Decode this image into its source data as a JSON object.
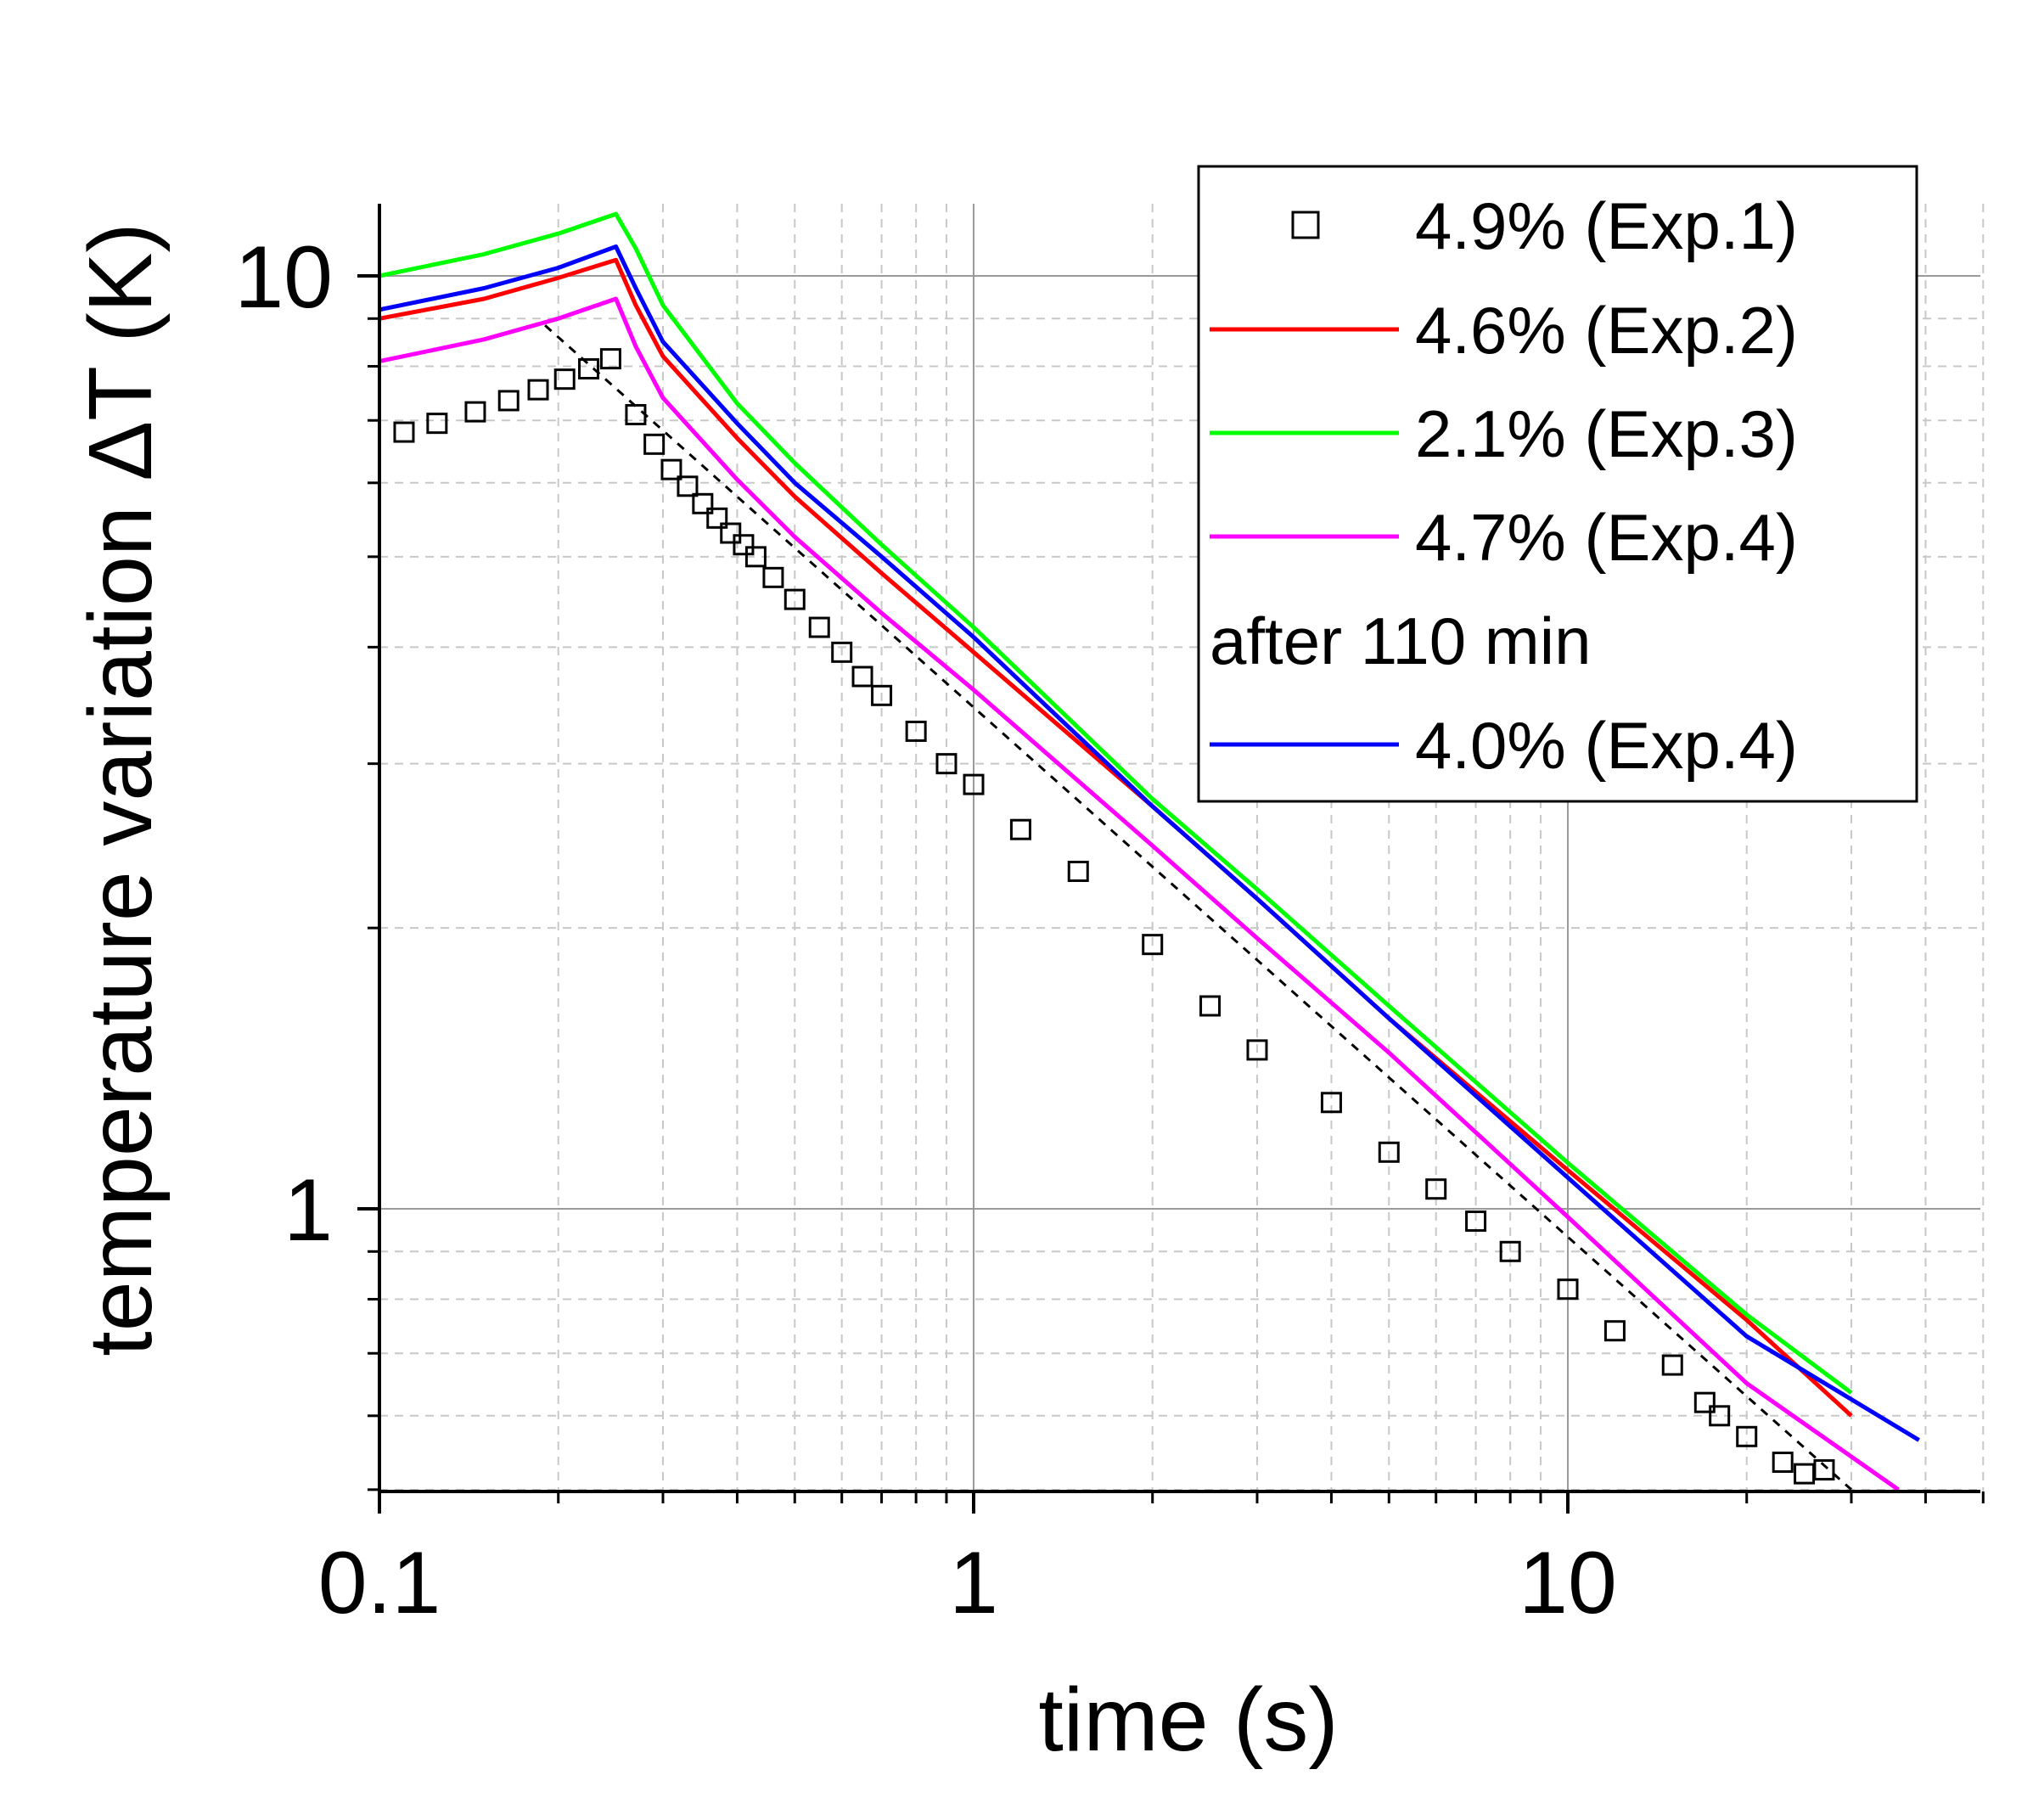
{
  "chart_data": {
    "type": "line",
    "title": "",
    "xlabel": "time (s)",
    "ylabel": "temperature variation ΔT (K)",
    "xscale": "log",
    "yscale": "log",
    "xlim": [
      0.1,
      50
    ],
    "ylim": [
      0.5,
      12
    ],
    "xticks": [
      {
        "value": 0.1,
        "label": "0.1"
      },
      {
        "value": 1,
        "label": "1"
      },
      {
        "value": 10,
        "label": "10"
      }
    ],
    "yticks": [
      {
        "value": 1,
        "label": "1"
      },
      {
        "value": 10,
        "label": "10"
      }
    ],
    "grid": true,
    "legend_position": "top-right",
    "legend_note": "after 110 min",
    "series": [
      {
        "name": "4.9% (Exp.1)",
        "kind": "markers",
        "marker": "open-square",
        "color": "#000000",
        "x": [
          0.11,
          0.125,
          0.145,
          0.165,
          0.185,
          0.205,
          0.225,
          0.245,
          0.27,
          0.29,
          0.31,
          0.33,
          0.35,
          0.37,
          0.39,
          0.41,
          0.43,
          0.46,
          0.5,
          0.55,
          0.6,
          0.65,
          0.7,
          0.8,
          0.9,
          1.0,
          1.2,
          1.5,
          2.0,
          2.5,
          3.0,
          4.0,
          5.0,
          6.0,
          7.0,
          8.0,
          10.0,
          12.0,
          15.0,
          17.0,
          18.0,
          20.0,
          23.0,
          25.0,
          27.0
        ],
        "y": [
          6.8,
          6.95,
          7.15,
          7.35,
          7.55,
          7.75,
          7.95,
          8.15,
          7.1,
          6.6,
          6.2,
          5.95,
          5.7,
          5.5,
          5.3,
          5.15,
          5.0,
          4.75,
          4.5,
          4.2,
          3.95,
          3.72,
          3.55,
          3.25,
          3.0,
          2.85,
          2.55,
          2.3,
          1.92,
          1.65,
          1.48,
          1.3,
          1.15,
          1.05,
          0.97,
          0.9,
          0.82,
          0.74,
          0.68,
          0.62,
          0.6,
          0.57,
          0.535,
          0.52,
          0.525
        ]
      },
      {
        "name": "4.6% (Exp.2)",
        "kind": "line",
        "color": "#ff0000",
        "x": [
          0.1,
          0.15,
          0.2,
          0.25,
          0.27,
          0.3,
          0.4,
          0.5,
          0.7,
          1.0,
          2.0,
          3.0,
          5.0,
          10.0,
          20.0,
          30.0
        ],
        "y": [
          9.0,
          9.45,
          9.95,
          10.4,
          9.3,
          8.2,
          6.7,
          5.8,
          4.8,
          3.95,
          2.7,
          2.15,
          1.6,
          1.1,
          0.76,
          0.6
        ]
      },
      {
        "name": "2.1% (Exp.3)",
        "kind": "line",
        "color": "#00ff00",
        "x": [
          0.1,
          0.15,
          0.2,
          0.25,
          0.27,
          0.3,
          0.4,
          0.5,
          0.7,
          1.0,
          2.0,
          3.0,
          5.0,
          10.0,
          20.0,
          30.0
        ],
        "y": [
          10.0,
          10.55,
          11.1,
          11.65,
          10.7,
          9.3,
          7.3,
          6.3,
          5.15,
          4.2,
          2.75,
          2.2,
          1.65,
          1.12,
          0.77,
          0.635
        ]
      },
      {
        "name": "4.7% (Exp.4)",
        "kind": "line",
        "color": "#ff00ff",
        "x": [
          0.1,
          0.15,
          0.2,
          0.25,
          0.27,
          0.3,
          0.4,
          0.5,
          0.7,
          1.0,
          2.0,
          3.0,
          5.0,
          10.0,
          20.0,
          36.0
        ],
        "y": [
          8.1,
          8.55,
          9.0,
          9.45,
          8.4,
          7.4,
          6.05,
          5.25,
          4.35,
          3.6,
          2.45,
          1.95,
          1.47,
          0.98,
          0.65,
          0.5
        ]
      },
      {
        "name": "4.0% (Exp.4)",
        "kind": "line",
        "color": "#0000ff",
        "x": [
          0.1,
          0.15,
          0.2,
          0.25,
          0.27,
          0.3,
          0.4,
          0.5,
          0.7,
          1.0,
          2.0,
          3.0,
          5.0,
          10.0,
          20.0,
          39.0
        ],
        "y": [
          9.2,
          9.7,
          10.2,
          10.75,
          9.7,
          8.5,
          6.95,
          6.0,
          5.0,
          4.1,
          2.7,
          2.15,
          1.6,
          1.08,
          0.73,
          0.565
        ]
      },
      {
        "name": "",
        "kind": "dashed-line",
        "color": "#000000",
        "x": [
          0.19,
          30.0
        ],
        "y": [
          8.85,
          0.5
        ]
      }
    ]
  }
}
